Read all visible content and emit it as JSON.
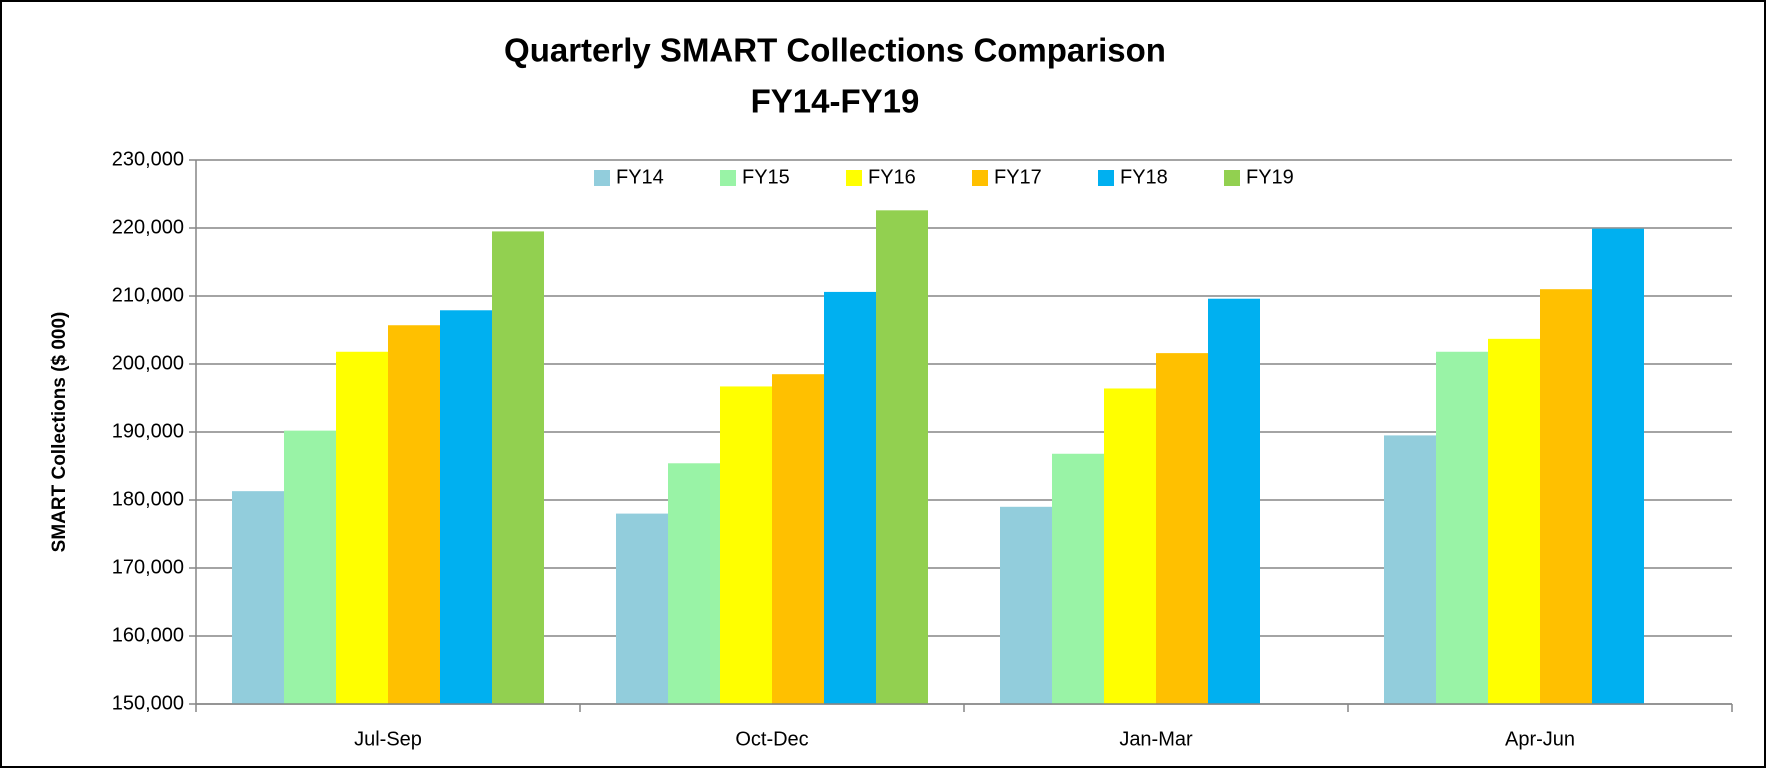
{
  "chart_data": {
    "type": "bar",
    "title": [
      "Quarterly  SMART Collections Comparison",
      "FY14-FY19"
    ],
    "y_label": "SMART Collections ($ 000)",
    "categories": [
      "Jul-Sep",
      "Oct-Dec",
      "Jan-Mar",
      "Apr-Jun"
    ],
    "series": [
      {
        "name": "FY14",
        "color": "#92cddc",
        "values": [
          181300,
          178000,
          179000,
          189500
        ]
      },
      {
        "name": "FY15",
        "color": "#99f3a6",
        "values": [
          190200,
          185400,
          186800,
          201800
        ]
      },
      {
        "name": "FY16",
        "color": "#ffff00",
        "values": [
          201800,
          196700,
          196400,
          203700
        ]
      },
      {
        "name": "FY17",
        "color": "#ffc000",
        "values": [
          205700,
          198500,
          201600,
          211000
        ]
      },
      {
        "name": "FY18",
        "color": "#00b0f0",
        "values": [
          207900,
          210600,
          209600,
          219900
        ]
      },
      {
        "name": "FY19",
        "color": "#92d050",
        "values": [
          219500,
          222600,
          null,
          null
        ]
      }
    ],
    "ylim": [
      150000,
      230000
    ],
    "yticks": [
      {
        "value": 150000,
        "label": "150,000"
      },
      {
        "value": 160000,
        "label": "160,000"
      },
      {
        "value": 170000,
        "label": "170,000"
      },
      {
        "value": 180000,
        "label": "180,000"
      },
      {
        "value": 190000,
        "label": "190,000"
      },
      {
        "value": 200000,
        "label": "200,000"
      },
      {
        "value": 210000,
        "label": "210,000"
      },
      {
        "value": 220000,
        "label": "220,000"
      },
      {
        "value": 230000,
        "label": "230,000"
      }
    ],
    "grid": true,
    "legend": "top"
  }
}
